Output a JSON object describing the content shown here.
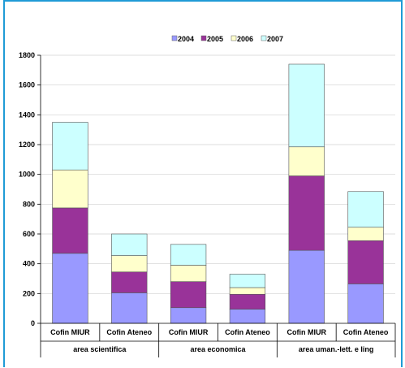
{
  "chart_data": {
    "type": "bar",
    "stacked": true,
    "groups": [
      {
        "label": "area scientifica",
        "categories": [
          "Cofin MIUR",
          "Cofin Ateneo"
        ]
      },
      {
        "label": "area economica",
        "categories": [
          "Cofin MIUR",
          "Cofin Ateneo"
        ]
      },
      {
        "label": "area uman.-lett. e ling",
        "categories": [
          "Cofin MIUR",
          "Cofin Ateneo"
        ]
      }
    ],
    "categories": [
      "Cofin MIUR",
      "Cofin Ateneo",
      "Cofin MIUR",
      "Cofin Ateneo",
      "Cofin MIUR",
      "Cofin Ateneo"
    ],
    "series": [
      {
        "name": "2004",
        "color": "#9999ff",
        "values": [
          470,
          205,
          105,
          95,
          490,
          265
        ]
      },
      {
        "name": "2005",
        "color": "#993399",
        "values": [
          305,
          140,
          175,
          100,
          500,
          290
        ]
      },
      {
        "name": "2006",
        "color": "#ffffcc",
        "values": [
          255,
          110,
          110,
          45,
          195,
          90
        ]
      },
      {
        "name": "2007",
        "color": "#ccffff",
        "values": [
          320,
          145,
          140,
          90,
          555,
          240
        ]
      }
    ],
    "ylim": [
      0,
      1800
    ],
    "yticks": [
      "0",
      "200",
      "400",
      "600",
      "800",
      "1000",
      "1200",
      "1400",
      "1600",
      "1800"
    ],
    "legend_position": "top",
    "grid": true
  }
}
